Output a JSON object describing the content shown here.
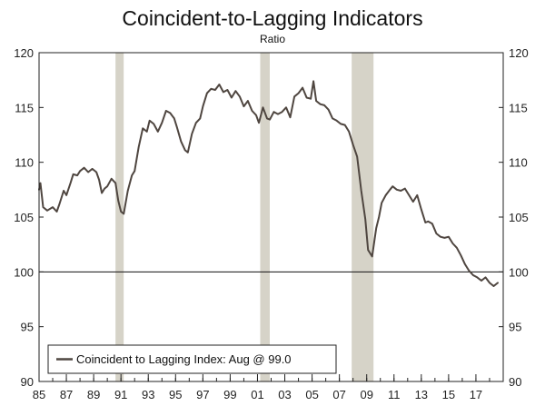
{
  "chart_data": {
    "type": "line",
    "title": "Coincident-to-Lagging Indicators",
    "subtitle": "Ratio",
    "ylabel": "Ratio",
    "ylim": [
      90,
      120
    ],
    "xlim": [
      1985,
      2019
    ],
    "y_ticks": [
      90,
      95,
      100,
      105,
      110,
      115,
      120
    ],
    "y_tick_labels": [
      "90",
      "95",
      "100",
      "105",
      "110",
      "115",
      "120"
    ],
    "x_tick_labels": [
      "85",
      "87",
      "89",
      "91",
      "93",
      "95",
      "97",
      "99",
      "01",
      "03",
      "05",
      "07",
      "09",
      "11",
      "13",
      "15",
      "17"
    ],
    "x_tick_years": [
      1985,
      1987,
      1989,
      1991,
      1993,
      1995,
      1997,
      1999,
      2001,
      2003,
      2005,
      2007,
      2009,
      2011,
      2013,
      2015,
      2017
    ],
    "reference_line": 100,
    "recessions": [
      {
        "start": 1990.6,
        "end": 1991.2
      },
      {
        "start": 2001.2,
        "end": 2001.9
      },
      {
        "start": 2007.9,
        "end": 2009.5
      }
    ],
    "series": [
      {
        "name": "Coincident to Lagging Index: Aug @ 99.0",
        "color": "#4f4640",
        "x": [
          1985.0,
          1985.1,
          1985.3,
          1985.6,
          1986.0,
          1986.3,
          1986.5,
          1986.8,
          1987.0,
          1987.3,
          1987.5,
          1987.8,
          1988.0,
          1988.3,
          1988.6,
          1988.9,
          1989.2,
          1989.4,
          1989.6,
          1989.8,
          1990.0,
          1990.3,
          1990.6,
          1990.8,
          1991.0,
          1991.2,
          1991.5,
          1991.8,
          1992.0,
          1992.3,
          1992.6,
          1992.9,
          1993.1,
          1993.4,
          1993.7,
          1994.0,
          1994.3,
          1994.6,
          1994.9,
          1995.1,
          1995.4,
          1995.7,
          1995.9,
          1996.2,
          1996.5,
          1996.8,
          1997.0,
          1997.3,
          1997.6,
          1997.9,
          1998.2,
          1998.5,
          1998.8,
          1999.1,
          1999.4,
          1999.7,
          2000.0,
          2000.3,
          2000.6,
          2000.9,
          2001.1,
          2001.4,
          2001.7,
          2001.9,
          2002.2,
          2002.5,
          2002.8,
          2003.1,
          2003.4,
          2003.7,
          2004.0,
          2004.3,
          2004.6,
          2004.9,
          2005.1,
          2005.3,
          2005.6,
          2005.9,
          2006.2,
          2006.5,
          2006.8,
          2007.1,
          2007.4,
          2007.7,
          2008.0,
          2008.3,
          2008.6,
          2008.9,
          2009.1,
          2009.4,
          2009.7,
          2009.9,
          2010.1,
          2010.4,
          2010.7,
          2010.9,
          2011.2,
          2011.5,
          2011.8,
          2012.1,
          2012.4,
          2012.7,
          2013.0,
          2013.3,
          2013.5,
          2013.8,
          2014.1,
          2014.4,
          2014.7,
          2015.0,
          2015.3,
          2015.6,
          2015.9,
          2016.2,
          2016.5,
          2016.8,
          2017.1,
          2017.4,
          2017.7,
          2018.0,
          2018.3,
          2018.6
        ],
        "values": [
          107.5,
          108.1,
          105.9,
          105.6,
          105.9,
          105.5,
          106.2,
          107.4,
          107.0,
          108.1,
          108.9,
          108.8,
          109.2,
          109.5,
          109.1,
          109.4,
          109.1,
          108.4,
          107.2,
          107.6,
          107.8,
          108.5,
          108.1,
          106.5,
          105.5,
          105.3,
          107.4,
          108.8,
          109.2,
          111.4,
          113.1,
          112.8,
          113.8,
          113.5,
          112.8,
          113.6,
          114.7,
          114.5,
          114.0,
          113.2,
          111.9,
          111.1,
          110.9,
          112.6,
          113.6,
          114.0,
          115.1,
          116.3,
          116.7,
          116.6,
          117.1,
          116.4,
          116.6,
          115.9,
          116.5,
          116.0,
          115.1,
          115.6,
          114.7,
          114.3,
          113.6,
          115.0,
          114.0,
          113.9,
          114.6,
          114.4,
          114.6,
          115.0,
          114.1,
          116.0,
          116.3,
          116.8,
          115.9,
          115.8,
          117.4,
          115.6,
          115.3,
          115.2,
          114.8,
          114.0,
          113.8,
          113.5,
          113.4,
          112.8,
          111.6,
          110.5,
          107.4,
          104.8,
          102.0,
          101.4,
          104.0,
          105.0,
          106.3,
          107.0,
          107.5,
          107.8,
          107.5,
          107.4,
          107.6,
          107.0,
          106.4,
          107.0,
          105.7,
          104.5,
          104.6,
          104.4,
          103.5,
          103.2,
          103.1,
          103.2,
          102.6,
          102.2,
          101.5,
          100.7,
          100.1,
          99.7,
          99.5,
          99.2,
          99.5,
          99.0,
          98.7,
          99.0
        ]
      }
    ],
    "legend": {
      "text": "Coincident to Lagging Index: Aug @ 99.0",
      "position": "bottom-left"
    }
  }
}
